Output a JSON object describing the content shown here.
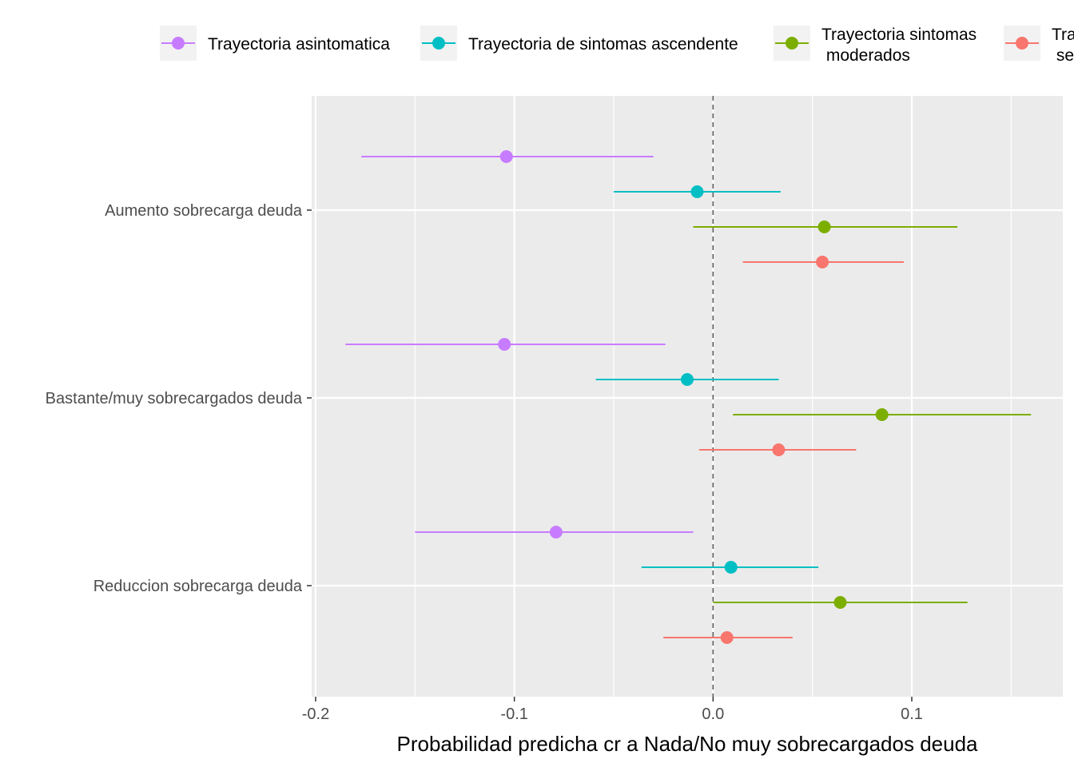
{
  "chart_data": {
    "type": "scatter",
    "subtype": "dot-and-whisker",
    "xlabel": "Probabilidad predicha cr a Nada/No muy sobrecargados deuda",
    "ylabel": "",
    "xlim": [
      -0.202,
      0.176
    ],
    "x_ticks": [
      -0.2,
      -0.1,
      0.0,
      0.1
    ],
    "x_tick_labels": [
      "-0.2",
      "-0.1",
      "0.0",
      "0.1"
    ],
    "reference_line": 0,
    "grid": true,
    "legend_position": "top",
    "categories": [
      "Aumento sobrecarga deuda",
      "Bastante/muy sobrecargados deuda",
      "Reduccion sobrecarga deuda"
    ],
    "series": [
      {
        "name": "Trayectoria asintomatica",
        "legend_lines": [
          "Trayectoria asintomatica"
        ],
        "color": "#C77CFF",
        "estimate": [
          -0.104,
          -0.105,
          -0.079
        ],
        "lower": [
          -0.177,
          -0.185,
          -0.15
        ],
        "upper": [
          -0.03,
          -0.024,
          -0.01
        ]
      },
      {
        "name": "Trayectoria de sintomas ascendente",
        "legend_lines": [
          "Trayectoria de sintomas ascendente"
        ],
        "color": "#00BFC4",
        "estimate": [
          -0.008,
          -0.013,
          0.009
        ],
        "lower": [
          -0.05,
          -0.059,
          -0.036
        ],
        "upper": [
          0.034,
          0.033,
          0.053
        ]
      },
      {
        "name": "Trayectoria sintomas moderados",
        "legend_lines": [
          "Trayectoria sintomas",
          " moderados"
        ],
        "color": "#7CAE00",
        "estimate": [
          0.056,
          0.085,
          0.064
        ],
        "lower": [
          -0.01,
          0.01,
          0.0
        ],
        "upper": [
          0.123,
          0.16,
          0.128
        ]
      },
      {
        "name": "Tra se",
        "legend_lines": [
          "Tra",
          " se"
        ],
        "color": "#F8766D",
        "estimate": [
          0.055,
          0.033,
          0.007
        ],
        "lower": [
          0.015,
          -0.007,
          -0.025
        ],
        "upper": [
          0.096,
          0.072,
          0.04
        ]
      }
    ]
  }
}
